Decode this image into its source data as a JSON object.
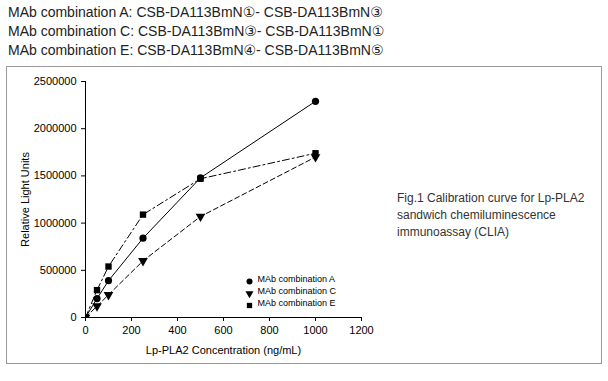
{
  "header": [
    "MAb combination A:  CSB-DA113BmN①- CSB-DA113BmN③",
    "MAb combination C:  CSB-DA113BmN③- CSB-DA113BmN①",
    "MAb combination E:  CSB-DA113BmN④- CSB-DA113BmN⑤"
  ],
  "caption": "Fig.1 Calibration curve for Lp-PLA2 sandwich chemiluminescence immunoassay (CLIA)",
  "chart_data": {
    "type": "line",
    "x_label": "Lp-PLA2 Concentration (ng/mL)",
    "y_label": "Relative Light Units",
    "x": [
      0,
      50,
      100,
      250,
      500,
      1000
    ],
    "series": [
      {
        "name": "MAb combination A",
        "color": "#000000",
        "marker": "circle",
        "line_style": "solid",
        "values": [
          0,
          200000,
          390000,
          840000,
          1480000,
          2290000
        ]
      },
      {
        "name": "MAb combination C",
        "color": "#000000",
        "marker": "triangle-down",
        "line_style": "dashed",
        "values": [
          0,
          120000,
          240000,
          600000,
          1070000,
          1700000
        ]
      },
      {
        "name": "MAb combination E",
        "color": "#000000",
        "marker": "square",
        "line_style": "dashdot",
        "values": [
          0,
          290000,
          540000,
          1090000,
          1470000,
          1740000
        ]
      }
    ],
    "xlim": [
      0,
      1200
    ],
    "xticks": [
      0,
      200,
      400,
      600,
      800,
      1000,
      1200
    ],
    "ylim": [
      0,
      2500000
    ],
    "yticks": [
      0,
      500000,
      1000000,
      1500000,
      2000000,
      2500000
    ],
    "grid": false,
    "legend": "lower right"
  }
}
